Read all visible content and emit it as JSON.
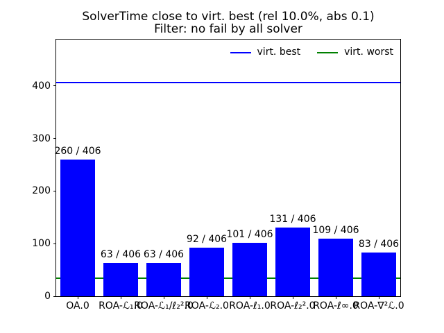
{
  "title": {
    "line1": "SolverTime close to virt. best (rel 10.0%, abs 0.1)",
    "line2": "Filter: no fail by all solver"
  },
  "legend": {
    "entries": [
      {
        "label": "virt. best",
        "color": "#0000ff"
      },
      {
        "label": "virt. worst",
        "color": "#008000"
      }
    ]
  },
  "chart_data": {
    "type": "bar",
    "title": "SolverTime close to virt. best (rel 10.0%, abs 0.1)",
    "subtitle": "Filter: no fail by all solver",
    "categories": [
      "OA.0",
      "ROA-ℒ₁.0",
      "ROA-ℒ₁/ℓ₂².0",
      "ROA-ℒ₂.0",
      "ROA-ℓ₁.0",
      "ROA-ℓ₂².0",
      "ROA-ℓ∞.0",
      "ROA-∇²ℒ.0"
    ],
    "values": [
      260,
      63,
      63,
      92,
      101,
      131,
      109,
      83
    ],
    "bar_labels": [
      "260 / 406",
      "63 / 406",
      "63 / 406",
      "92 / 406",
      "101 / 406",
      "131 / 406",
      "109 / 406",
      "83 / 406"
    ],
    "total": 406,
    "bar_color": "#0000ff",
    "hlines": [
      {
        "name": "virt. best",
        "value": 406,
        "color": "#0000ff"
      },
      {
        "name": "virt. worst",
        "value": 34,
        "color": "#008000"
      }
    ],
    "yticks": [
      0,
      100,
      200,
      300,
      400
    ],
    "ylim": [
      0,
      488
    ],
    "xlabel": "",
    "ylabel": "",
    "grid": false,
    "legend_position": "upper right"
  }
}
